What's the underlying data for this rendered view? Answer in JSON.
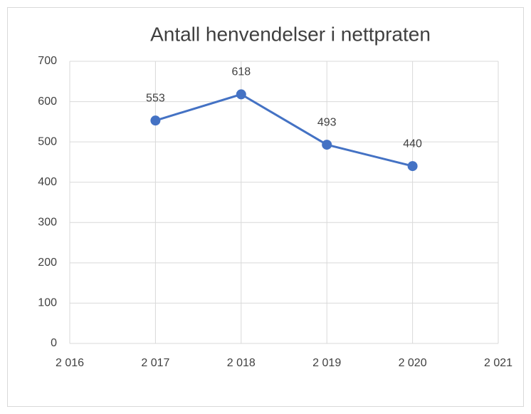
{
  "chart_data": {
    "type": "line",
    "title": "Antall henvendelser i nettpraten",
    "x": [
      2017,
      2018,
      2019,
      2020
    ],
    "values": [
      553,
      618,
      493,
      440
    ],
    "color": "#4472c4",
    "xlim": [
      2016,
      2021
    ],
    "xticks": [
      {
        "value": 2016,
        "label": "2 016"
      },
      {
        "value": 2017,
        "label": "2 017"
      },
      {
        "value": 2018,
        "label": "2 018"
      },
      {
        "value": 2019,
        "label": "2 019"
      },
      {
        "value": 2020,
        "label": "2 020"
      },
      {
        "value": 2021,
        "label": "2 021"
      }
    ],
    "ylim": [
      0,
      700
    ],
    "yticks": [
      0,
      100,
      200,
      300,
      400,
      500,
      600,
      700
    ],
    "grid": true
  }
}
